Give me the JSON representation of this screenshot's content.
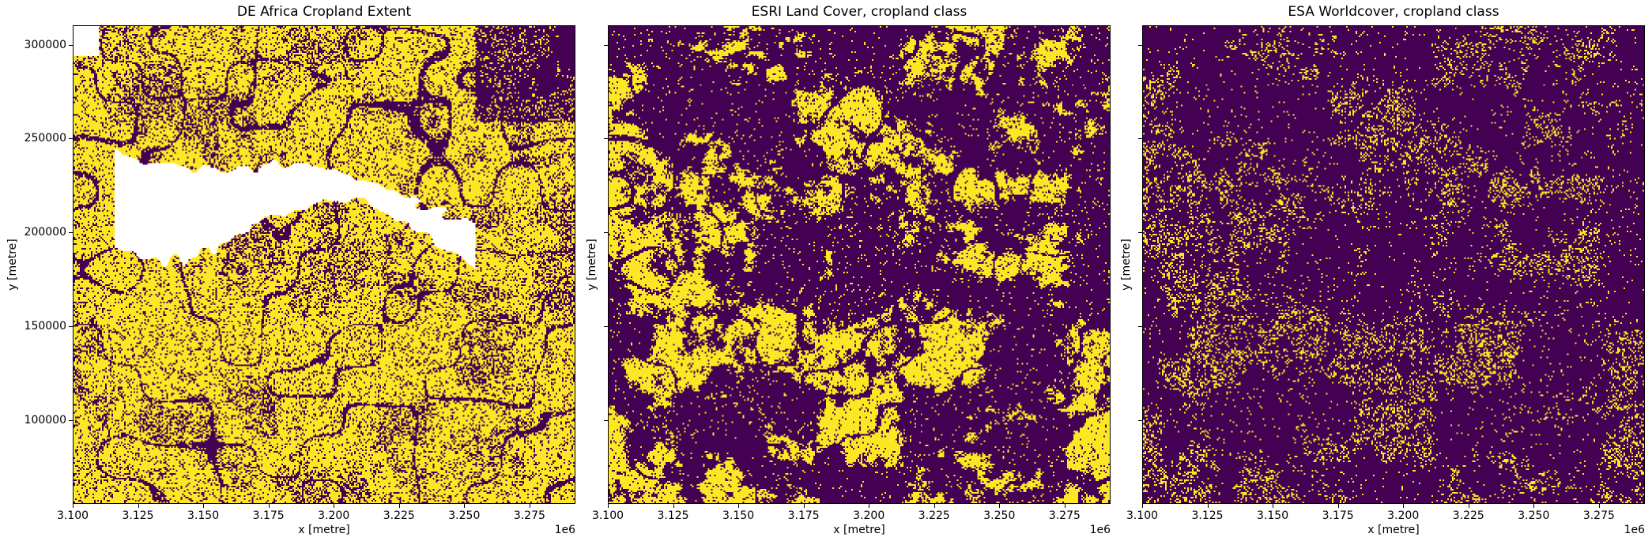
{
  "chart_data": [
    {
      "type": "heatmap",
      "title": "DE Africa Cropland Extent",
      "xlabel": "x [metre]",
      "ylabel": "y [metre]",
      "x_offset_label": "1e6",
      "xlim": [
        3100000,
        3292600
      ],
      "ylim": [
        55200,
        310400
      ],
      "x_ticks": [
        "3.100",
        "3.125",
        "3.150",
        "3.175",
        "3.200",
        "3.225",
        "3.250",
        "3.275"
      ],
      "y_ticks": [
        "100000",
        "150000",
        "200000",
        "250000",
        "300000"
      ],
      "show_y_tick_labels": true,
      "classes": {
        "0": "#440154",
        "1": "#fde725",
        "nodata": "#ffffff"
      },
      "approx_fraction_class_1": 0.7,
      "has_nodata_water": true
    },
    {
      "type": "heatmap",
      "title": "ESRI Land Cover, cropland class",
      "xlabel": "x [metre]",
      "ylabel": "y [metre]",
      "x_offset_label": "1e6",
      "xlim": [
        3100000,
        3292600
      ],
      "ylim": [
        55200,
        310400
      ],
      "x_ticks": [
        "3.100",
        "3.125",
        "3.150",
        "3.175",
        "3.200",
        "3.225",
        "3.250",
        "3.275"
      ],
      "y_ticks": [
        "100000",
        "150000",
        "200000",
        "250000",
        "300000"
      ],
      "show_y_tick_labels": false,
      "classes": {
        "0": "#440154",
        "1": "#fde725"
      },
      "approx_fraction_class_1": 0.3,
      "has_nodata_water": false
    },
    {
      "type": "heatmap",
      "title": "ESA Worldcover, cropland class",
      "xlabel": "x [metre]",
      "ylabel": "y [metre]",
      "x_offset_label": "1e6",
      "xlim": [
        3100000,
        3292600
      ],
      "ylim": [
        55200,
        310400
      ],
      "x_ticks": [
        "3.100",
        "3.125",
        "3.150",
        "3.175",
        "3.200",
        "3.225",
        "3.250",
        "3.275"
      ],
      "y_ticks": [
        "100000",
        "150000",
        "200000",
        "250000",
        "300000"
      ],
      "show_y_tick_labels": false,
      "classes": {
        "0": "#440154",
        "1": "#fde725"
      },
      "approx_fraction_class_1": 0.12,
      "has_nodata_water": false
    }
  ]
}
